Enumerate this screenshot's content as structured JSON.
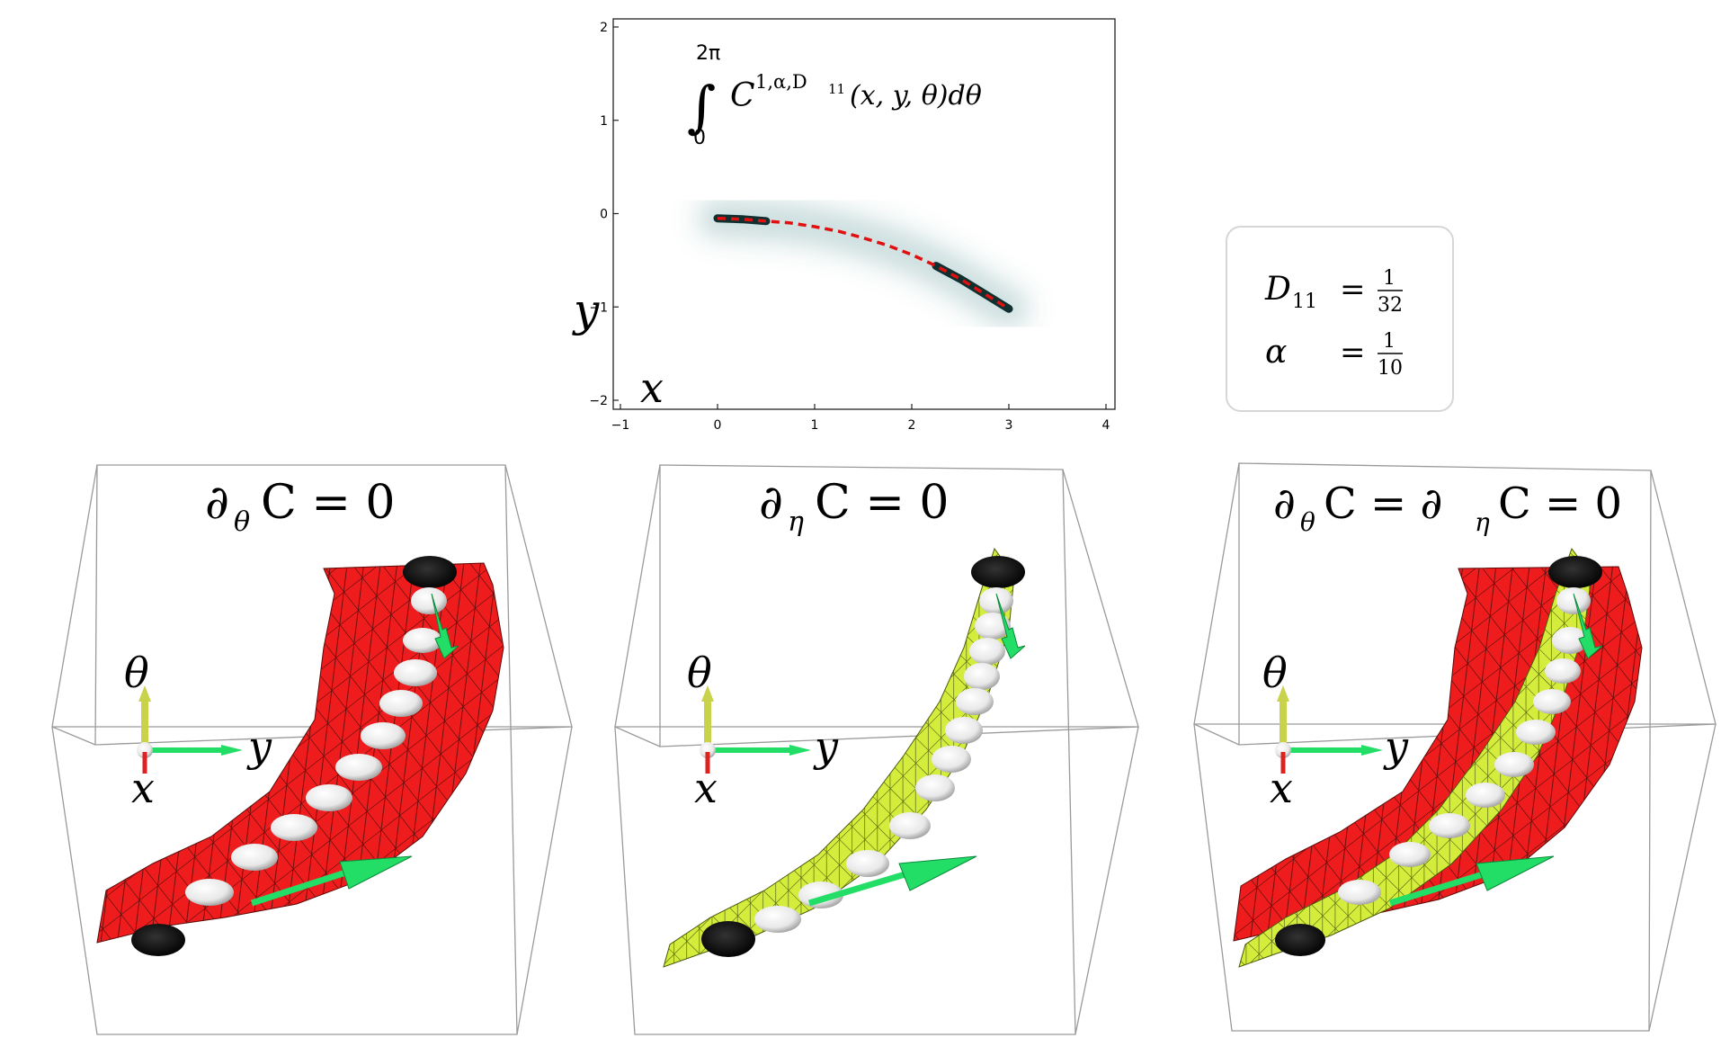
{
  "heatmap": {
    "integral_upper": "2π",
    "integral_lower": "0",
    "integrand": "C",
    "integrand_superscript": "1,α,D",
    "integrand_superscript_sub": "11",
    "integrand_args": "(x, y, θ)dθ",
    "x_label": "x",
    "y_label": "y",
    "x_ticks": [
      "−1",
      "0",
      "1",
      "2",
      "3",
      "4"
    ],
    "y_ticks": [
      "2",
      "1",
      "0",
      "−1",
      "−2"
    ],
    "colors": {
      "curve": "#e01010",
      "density": "#1a3a3a"
    }
  },
  "chart_data": {
    "type": "heatmap",
    "xlim": [
      -1,
      4
    ],
    "ylim": [
      -2,
      2
    ],
    "grid": false,
    "curve": {
      "x": [
        0,
        0.25,
        0.5,
        0.75,
        1.0,
        1.25,
        1.5,
        1.75,
        2.0,
        2.25,
        2.5,
        2.75,
        3.0
      ],
      "y": [
        -0.05,
        -0.06,
        -0.08,
        -0.1,
        -0.14,
        -0.19,
        -0.26,
        -0.34,
        -0.44,
        -0.56,
        -0.7,
        -0.86,
        -1.02
      ]
    }
  },
  "params": {
    "row1_sym": "D",
    "row1_sub": "11",
    "row1_eq": "=",
    "row1_num": "1",
    "row1_den": "32",
    "row2_sym": "α",
    "row2_eq": "=",
    "row2_num": "1",
    "row2_den": "10"
  },
  "panels": [
    {
      "title_pre": "∂",
      "title_sub": "θ",
      "title_post": "C = 0",
      "axis_theta": "θ",
      "axis_y": "y",
      "axis_x": "x"
    },
    {
      "title_pre": "∂",
      "title_sub": "η",
      "title_post": "C = 0",
      "axis_theta": "θ",
      "axis_y": "y",
      "axis_x": "x"
    },
    {
      "title_pre": "∂",
      "title_sub": "θ",
      "title_mid": "C = ∂",
      "title_sub2": "η",
      "title_post": "C = 0",
      "axis_theta": "θ",
      "axis_y": "y",
      "axis_x": "x"
    }
  ],
  "colors": {
    "red_surface": "#ee1c1c",
    "yellow_surface": "#d4ec3c",
    "arrow_green": "#22dd66",
    "sphere_white": "#f4f4f4",
    "sphere_black": "#0a0a0a",
    "axis_theta_color": "#c8d24a",
    "axis_x_color": "#dd2222"
  }
}
